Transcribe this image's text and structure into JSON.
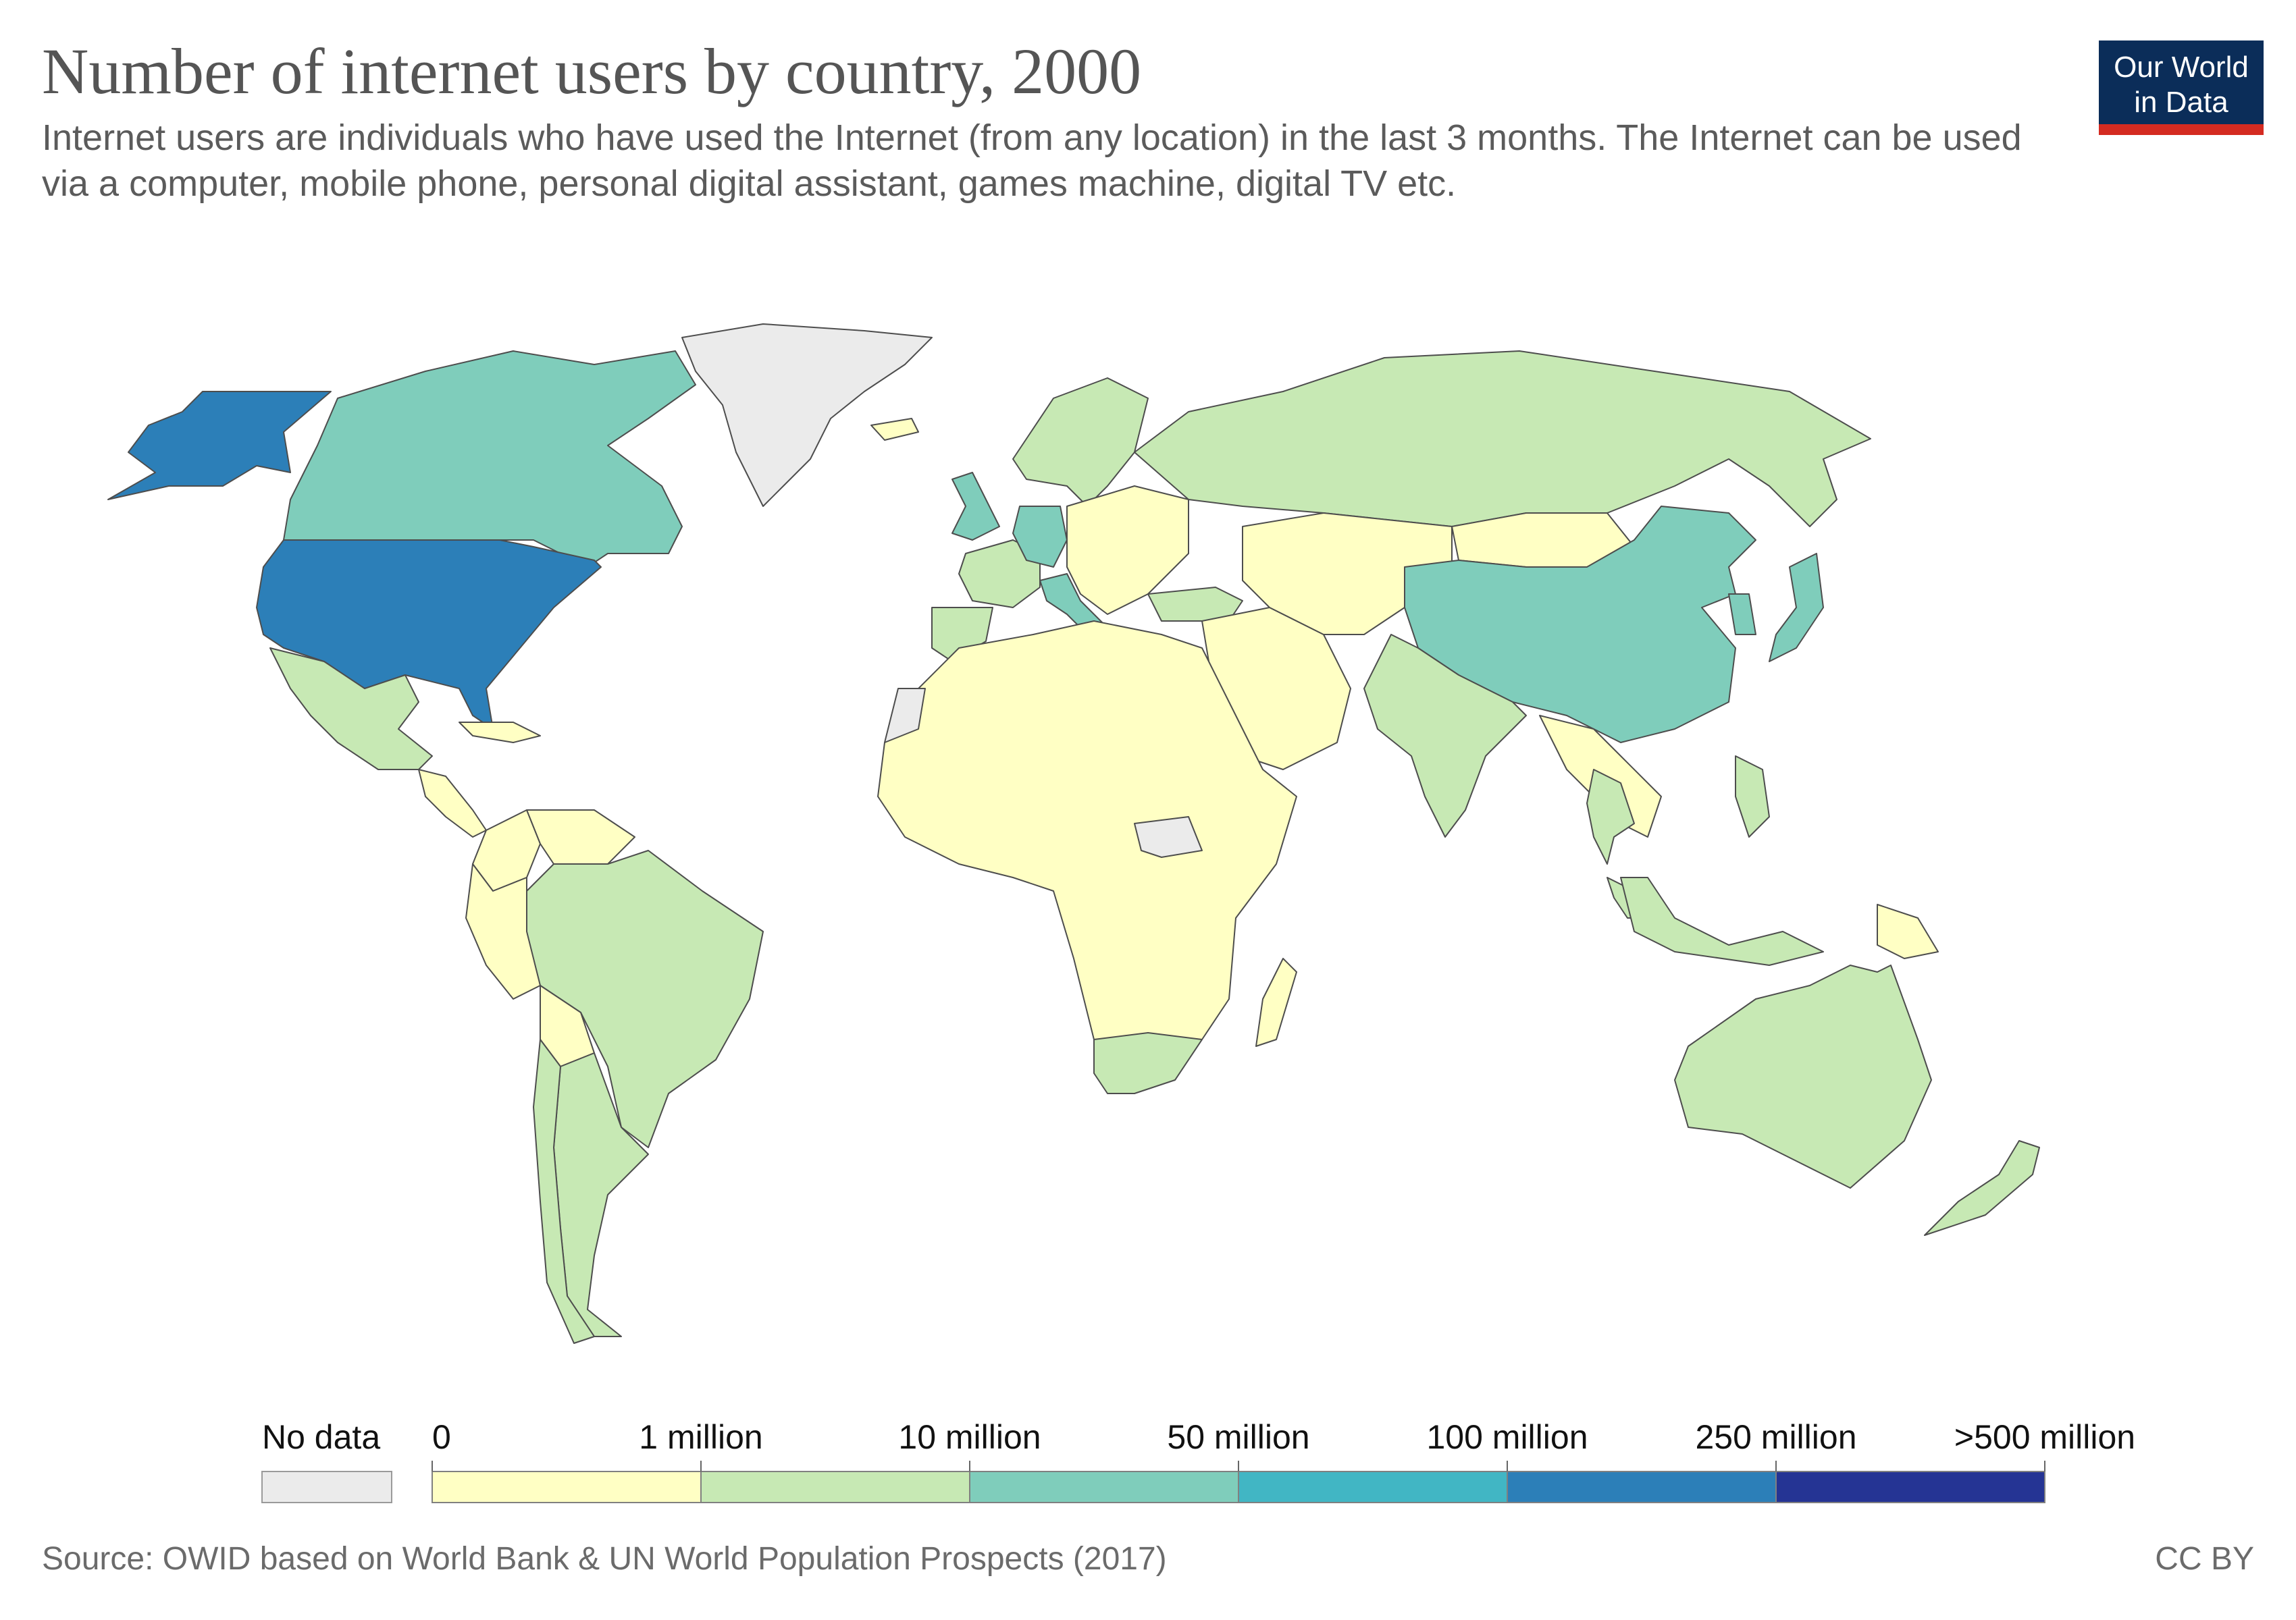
{
  "title": "Number of internet users by country, 2000",
  "subtitle": "Internet users are individuals who have used the Internet (from any location) in the last 3 months. The Internet can be used via a computer, mobile phone, personal digital assistant, games machine, digital TV etc.",
  "logo": {
    "line1": "Our World",
    "line2": "in Data"
  },
  "source": "Source: OWID based on World Bank & UN World Population Prospects (2017)",
  "license": "CC BY",
  "colors": {
    "no_data": "#ebebeb",
    "bin_0": "#ffffc4",
    "bin_1": "#c7e9b4",
    "bin_2": "#7fcdbb",
    "bin_3": "#41b6c4",
    "bin_4": "#2c7fb8",
    "bin_5": "#253494"
  },
  "legend": {
    "no_data_label": "No data",
    "tick_labels": [
      "0",
      "1 million",
      "10 million",
      "50 million",
      "100 million",
      "250 million",
      ">500 million"
    ]
  },
  "regions": [
    {
      "name": "Greenland",
      "bin": "no_data"
    },
    {
      "name": "Canada",
      "bin": "bin_2"
    },
    {
      "name": "United States",
      "bin": "bin_4"
    },
    {
      "name": "Mexico",
      "bin": "bin_1"
    },
    {
      "name": "Central America",
      "bin": "bin_0"
    },
    {
      "name": "Caribbean",
      "bin": "bin_0"
    },
    {
      "name": "Colombia",
      "bin": "bin_0"
    },
    {
      "name": "Venezuela",
      "bin": "bin_0"
    },
    {
      "name": "Brazil",
      "bin": "bin_1"
    },
    {
      "name": "Peru",
      "bin": "bin_0"
    },
    {
      "name": "Bolivia",
      "bin": "bin_0"
    },
    {
      "name": "Argentina",
      "bin": "bin_1"
    },
    {
      "name": "Chile",
      "bin": "bin_1"
    },
    {
      "name": "Iceland",
      "bin": "bin_0"
    },
    {
      "name": "United Kingdom",
      "bin": "bin_2"
    },
    {
      "name": "Germany",
      "bin": "bin_2"
    },
    {
      "name": "France",
      "bin": "bin_1"
    },
    {
      "name": "Spain",
      "bin": "bin_1"
    },
    {
      "name": "Italy",
      "bin": "bin_2"
    },
    {
      "name": "Scandinavia",
      "bin": "bin_1"
    },
    {
      "name": "Eastern Europe",
      "bin": "bin_0"
    },
    {
      "name": "Russia",
      "bin": "bin_1"
    },
    {
      "name": "Turkey",
      "bin": "bin_1"
    },
    {
      "name": "Western Sahara",
      "bin": "no_data"
    },
    {
      "name": "Africa",
      "bin": "bin_0"
    },
    {
      "name": "South Sudan",
      "bin": "no_data"
    },
    {
      "name": "South Africa",
      "bin": "bin_1"
    },
    {
      "name": "Madagascar",
      "bin": "bin_0"
    },
    {
      "name": "Middle East",
      "bin": "bin_0"
    },
    {
      "name": "Central Asia",
      "bin": "bin_0"
    },
    {
      "name": "Mongolia",
      "bin": "bin_0"
    },
    {
      "name": "China",
      "bin": "bin_2"
    },
    {
      "name": "India",
      "bin": "bin_1"
    },
    {
      "name": "Japan",
      "bin": "bin_2"
    },
    {
      "name": "South Korea",
      "bin": "bin_2"
    },
    {
      "name": "Southeast Asia",
      "bin": "bin_0"
    },
    {
      "name": "Thailand",
      "bin": "bin_1"
    },
    {
      "name": "Malaysia",
      "bin": "bin_1"
    },
    {
      "name": "Indonesia",
      "bin": "bin_1"
    },
    {
      "name": "Philippines",
      "bin": "bin_1"
    },
    {
      "name": "Papua New Guinea",
      "bin": "bin_0"
    },
    {
      "name": "Australia",
      "bin": "bin_1"
    },
    {
      "name": "New Zealand",
      "bin": "bin_1"
    }
  ]
}
